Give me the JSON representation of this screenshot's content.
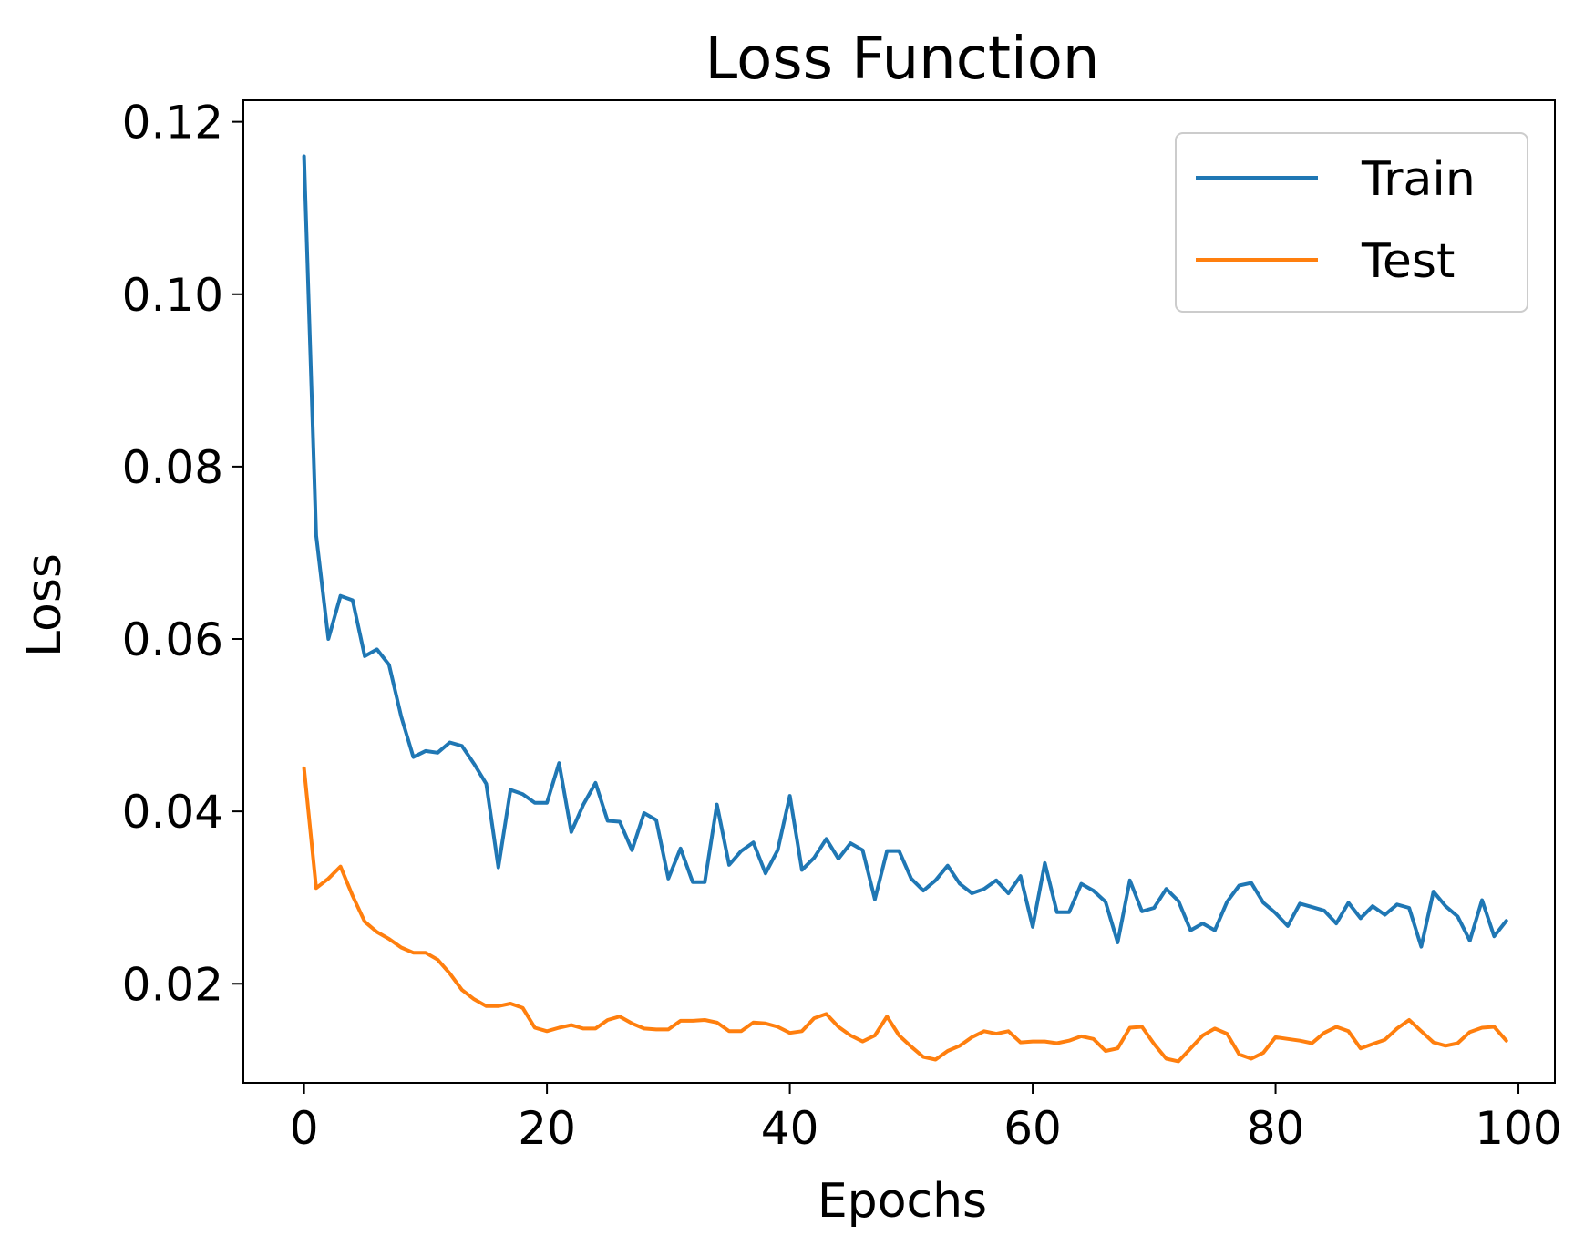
{
  "chart_data": {
    "type": "line",
    "title": "Loss Function",
    "xlabel": "Epochs",
    "ylabel": "Loss",
    "xlim": [
      -5,
      103
    ],
    "ylim": [
      0.0085,
      0.1225
    ],
    "x_ticks": [
      0,
      20,
      40,
      60,
      80,
      100
    ],
    "x_tick_labels": [
      "0",
      "20",
      "40",
      "60",
      "80",
      "100"
    ],
    "y_ticks": [
      0.02,
      0.04,
      0.06,
      0.08,
      0.1,
      0.12
    ],
    "y_tick_labels": [
      "0.02",
      "0.04",
      "0.06",
      "0.08",
      "0.10",
      "0.12"
    ],
    "grid": false,
    "legend_position": "top-right",
    "x": [
      0,
      1,
      2,
      3,
      4,
      5,
      6,
      7,
      8,
      9,
      10,
      11,
      12,
      13,
      14,
      15,
      16,
      17,
      18,
      19,
      20,
      21,
      22,
      23,
      24,
      25,
      26,
      27,
      28,
      29,
      30,
      31,
      32,
      33,
      34,
      35,
      36,
      37,
      38,
      39,
      40,
      41,
      42,
      43,
      44,
      45,
      46,
      47,
      48,
      49,
      50,
      51,
      52,
      53,
      54,
      55,
      56,
      57,
      58,
      59,
      60,
      61,
      62,
      63,
      64,
      65,
      66,
      67,
      68,
      69,
      70,
      71,
      72,
      73,
      74,
      75,
      76,
      77,
      78,
      79,
      80,
      81,
      82,
      83,
      84,
      85,
      86,
      87,
      88,
      89,
      90,
      91,
      92,
      93,
      94,
      95,
      96,
      97,
      98,
      99
    ],
    "series": [
      {
        "name": "Train",
        "color": "#1f77b4",
        "values": [
          0.116,
          0.072,
          0.06,
          0.065,
          0.0645,
          0.058,
          0.0588,
          0.057,
          0.051,
          0.0463,
          0.047,
          0.0468,
          0.048,
          0.0476,
          0.0455,
          0.0432,
          0.0335,
          0.0425,
          0.042,
          0.041,
          0.041,
          0.0456,
          0.0376,
          0.0408,
          0.0433,
          0.0389,
          0.0388,
          0.0355,
          0.0398,
          0.039,
          0.0322,
          0.0357,
          0.0318,
          0.0318,
          0.0408,
          0.0338,
          0.0354,
          0.0364,
          0.0328,
          0.0355,
          0.0418,
          0.0332,
          0.0346,
          0.0368,
          0.0345,
          0.0363,
          0.0355,
          0.0298,
          0.0354,
          0.0354,
          0.0322,
          0.0308,
          0.032,
          0.0337,
          0.0316,
          0.0305,
          0.031,
          0.032,
          0.0305,
          0.0325,
          0.0266,
          0.034,
          0.0283,
          0.0283,
          0.0316,
          0.0308,
          0.0295,
          0.0248,
          0.032,
          0.0284,
          0.0288,
          0.031,
          0.0296,
          0.0262,
          0.027,
          0.0262,
          0.0295,
          0.0314,
          0.0317,
          0.0294,
          0.0282,
          0.0267,
          0.0293,
          0.0289,
          0.0285,
          0.027,
          0.0294,
          0.0276,
          0.029,
          0.028,
          0.0292,
          0.0288,
          0.0243,
          0.0307,
          0.029,
          0.0278,
          0.025,
          0.0297,
          0.0255,
          0.0273
        ]
      },
      {
        "name": "Test",
        "color": "#ff7f0e",
        "values": [
          0.045,
          0.0311,
          0.0322,
          0.0336,
          0.0302,
          0.0272,
          0.026,
          0.0252,
          0.0242,
          0.0236,
          0.0236,
          0.0228,
          0.0212,
          0.0193,
          0.0182,
          0.0174,
          0.0174,
          0.0177,
          0.0172,
          0.0149,
          0.0145,
          0.0149,
          0.0152,
          0.0148,
          0.0148,
          0.0158,
          0.0162,
          0.0154,
          0.0148,
          0.0147,
          0.0147,
          0.0157,
          0.0157,
          0.0158,
          0.0155,
          0.0145,
          0.0145,
          0.0155,
          0.0154,
          0.015,
          0.0143,
          0.0145,
          0.016,
          0.0165,
          0.015,
          0.014,
          0.0133,
          0.014,
          0.0162,
          0.014,
          0.0127,
          0.0115,
          0.0112,
          0.0122,
          0.0128,
          0.0138,
          0.0145,
          0.0142,
          0.0145,
          0.0132,
          0.0133,
          0.0133,
          0.0131,
          0.0134,
          0.0139,
          0.0136,
          0.0122,
          0.0125,
          0.0149,
          0.015,
          0.013,
          0.0113,
          0.011,
          0.0125,
          0.014,
          0.0148,
          0.0142,
          0.0118,
          0.0113,
          0.012,
          0.0138,
          0.0136,
          0.0134,
          0.0131,
          0.0143,
          0.015,
          0.0145,
          0.0125,
          0.013,
          0.0135,
          0.0148,
          0.0158,
          0.0145,
          0.0132,
          0.0128,
          0.0131,
          0.0144,
          0.0149,
          0.015,
          0.0134
        ]
      }
    ]
  }
}
